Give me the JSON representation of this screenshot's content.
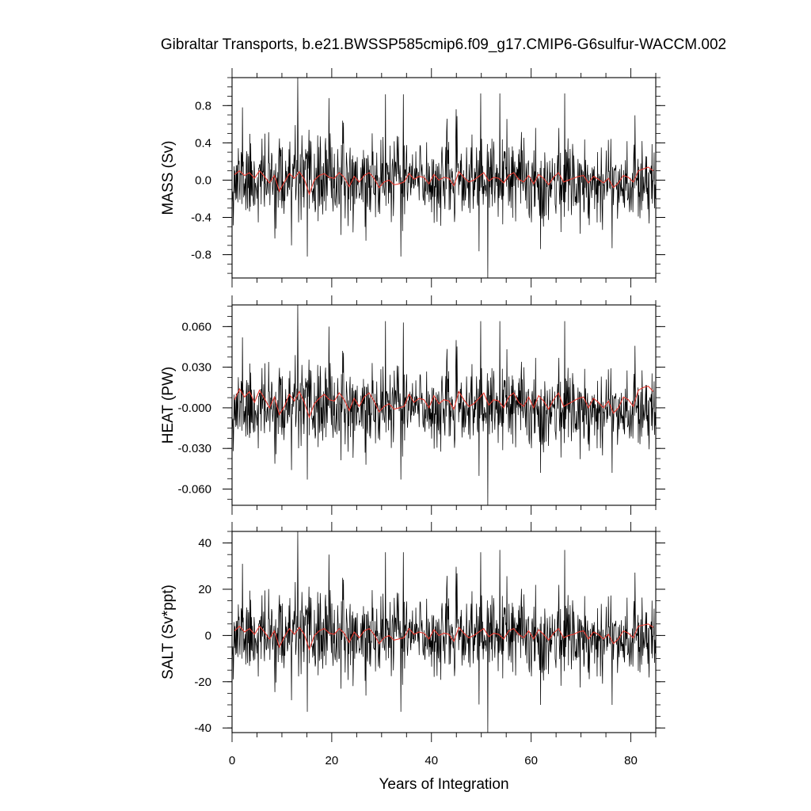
{
  "chart_data": {
    "type": "line",
    "title": "Gibraltar Transports, b.e21.BWSSP585cmip6.f09_g17.CMIP6-G6sulfur-WACCM.002",
    "xlabel": "Years of Integration",
    "xlim": [
      0,
      85
    ],
    "x_ticks": [
      "0",
      "20",
      "40",
      "60",
      "80"
    ],
    "grid": false,
    "panels": [
      {
        "ylabel": "MASS (Sv)",
        "ylim": [
          -1.05,
          1.1
        ],
        "y_ticks": [
          "0.8",
          "0.4",
          "0.0",
          "-0.4",
          "-0.8"
        ],
        "series": [
          {
            "role": "monthly",
            "color": "#000000",
            "std": 0.22,
            "seed": 11,
            "spikes": [
              [
                13.2,
                1.1
              ],
              [
                51.3,
                -1.05
              ],
              [
                2.1,
                0.78
              ],
              [
                19.4,
                0.88
              ],
              [
                30.8,
                0.92
              ],
              [
                34.4,
                0.92
              ],
              [
                49.9,
                0.93
              ],
              [
                53.7,
                0.93
              ],
              [
                66.7,
                0.93
              ],
              [
                15.1,
                -0.82
              ],
              [
                33.9,
                -0.82
              ],
              [
                26.9,
                -0.65
              ],
              [
                61.9,
                -0.74
              ],
              [
                76.2,
                -0.73
              ],
              [
                11.9,
                -0.7
              ]
            ]
          },
          {
            "role": "annual-mean",
            "color": "#e8392f",
            "x": [
              0.5,
              1.5,
              2.5,
              3.5,
              4.5,
              5.5,
              6.5,
              7.5,
              8.5,
              9.5,
              10.5,
              11.5,
              12.5,
              13.5,
              14.5,
              15.5,
              16.5,
              17.5,
              18.5,
              19.5,
              20.5,
              21.5,
              22.5,
              23.5,
              24.5,
              25.5,
              26.5,
              27.5,
              28.5,
              29.5,
              30.5,
              31.5,
              32.5,
              33.5,
              34.5,
              35.5,
              36.5,
              37.5,
              38.5,
              39.5,
              40.5,
              41.5,
              42.5,
              43.5,
              44.5,
              45.5,
              46.5,
              47.5,
              48.5,
              49.5,
              50.5,
              51.5,
              52.5,
              53.5,
              54.5,
              55.5,
              56.5,
              57.5,
              58.5,
              59.5,
              60.5,
              61.5,
              62.5,
              63.5,
              64.5,
              65.5,
              66.5,
              67.5,
              68.5,
              69.5,
              70.5,
              71.5,
              72.5,
              73.5,
              74.5,
              75.5,
              76.5,
              77.5,
              78.5,
              79.5,
              80.5,
              81.5,
              82.5,
              83.5,
              84.5
            ],
            "y": [
              0.06,
              0.1,
              0.05,
              0.08,
              0.02,
              0.1,
              0.04,
              -0.03,
              0.05,
              -0.12,
              -0.02,
              0.07,
              0.02,
              0.09,
              0.01,
              -0.15,
              0.0,
              0.05,
              0.07,
              0.03,
              0.02,
              0.08,
              0.03,
              -0.07,
              0.04,
              -0.02,
              0.05,
              0.08,
              0.02,
              -0.08,
              -0.02,
              0.0,
              -0.05,
              -0.04,
              -0.02,
              0.07,
              0.01,
              0.04,
              0.03,
              -0.04,
              0.06,
              0.0,
              0.03,
              0.02,
              -0.06,
              0.09,
              0.03,
              -0.02,
              0.0,
              0.04,
              0.08,
              -0.01,
              0.03,
              0.02,
              -0.03,
              0.05,
              0.08,
              0.01,
              -0.02,
              0.05,
              -0.04,
              0.06,
              0.02,
              -0.05,
              0.03,
              0.08,
              -0.02,
              0.0,
              0.02,
              0.04,
              0.05,
              -0.03,
              0.04,
              0.01,
              -0.03,
              0.02,
              -0.08,
              -0.03,
              0.05,
              0.03,
              -0.02,
              0.1,
              0.12,
              0.14,
              0.1
            ]
          }
        ]
      },
      {
        "ylabel": "HEAT (PW)",
        "ylim": [
          -0.072,
          0.076
        ],
        "y_ticks": [
          "0.060",
          "0.030",
          "-0.000",
          "-0.030",
          "-0.060"
        ],
        "series": [
          {
            "role": "monthly",
            "color": "#000000",
            "std": 0.0145,
            "seed": 11,
            "spikes": [
              [
                13.2,
                0.076
              ],
              [
                51.3,
                -0.072
              ],
              [
                2.1,
                0.052
              ],
              [
                19.4,
                0.06
              ],
              [
                30.8,
                0.064
              ],
              [
                34.4,
                0.063
              ],
              [
                49.9,
                0.064
              ],
              [
                53.7,
                0.064
              ],
              [
                66.7,
                0.064
              ],
              [
                15.1,
                -0.053
              ],
              [
                33.9,
                -0.053
              ],
              [
                26.9,
                -0.042
              ],
              [
                61.9,
                -0.048
              ],
              [
                76.2,
                -0.048
              ],
              [
                11.9,
                -0.046
              ]
            ]
          },
          {
            "role": "annual-mean",
            "color": "#e8392f",
            "x": [
              0.5,
              1.5,
              2.5,
              3.5,
              4.5,
              5.5,
              6.5,
              7.5,
              8.5,
              9.5,
              10.5,
              11.5,
              12.5,
              13.5,
              14.5,
              15.5,
              16.5,
              17.5,
              18.5,
              19.5,
              20.5,
              21.5,
              22.5,
              23.5,
              24.5,
              25.5,
              26.5,
              27.5,
              28.5,
              29.5,
              30.5,
              31.5,
              32.5,
              33.5,
              34.5,
              35.5,
              36.5,
              37.5,
              38.5,
              39.5,
              40.5,
              41.5,
              42.5,
              43.5,
              44.5,
              45.5,
              46.5,
              47.5,
              48.5,
              49.5,
              50.5,
              51.5,
              52.5,
              53.5,
              54.5,
              55.5,
              56.5,
              57.5,
              58.5,
              59.5,
              60.5,
              61.5,
              62.5,
              63.5,
              64.5,
              65.5,
              66.5,
              67.5,
              68.5,
              69.5,
              70.5,
              71.5,
              72.5,
              73.5,
              74.5,
              75.5,
              76.5,
              77.5,
              78.5,
              79.5,
              80.5,
              81.5,
              82.5,
              83.5,
              84.5
            ],
            "y": [
              0.006,
              0.014,
              0.008,
              0.012,
              0.004,
              0.013,
              0.007,
              0.0,
              0.008,
              -0.005,
              0.001,
              0.01,
              0.005,
              0.012,
              0.004,
              -0.007,
              0.003,
              0.007,
              0.01,
              0.006,
              0.005,
              0.011,
              0.006,
              -0.002,
              0.007,
              0.001,
              0.008,
              0.011,
              0.005,
              -0.003,
              0.001,
              0.003,
              -0.001,
              0.0,
              0.001,
              0.01,
              0.004,
              0.007,
              0.006,
              0.0,
              0.009,
              0.003,
              0.006,
              0.005,
              -0.001,
              0.012,
              0.006,
              0.001,
              0.003,
              0.007,
              0.011,
              0.002,
              0.006,
              0.005,
              0.0,
              0.008,
              0.011,
              0.004,
              0.001,
              0.008,
              0.0,
              0.009,
              0.005,
              -0.001,
              0.006,
              0.011,
              0.001,
              0.003,
              0.005,
              0.007,
              0.008,
              0.0,
              0.007,
              0.004,
              0.0,
              0.005,
              -0.004,
              0.0,
              0.008,
              0.006,
              0.001,
              0.013,
              0.015,
              0.016,
              0.012
            ]
          }
        ]
      },
      {
        "ylabel": "SALT (Sv*ppt)",
        "ylim": [
          -42,
          45
        ],
        "y_ticks": [
          "40",
          "20",
          "0",
          "-20",
          "-40"
        ],
        "series": [
          {
            "role": "monthly",
            "color": "#000000",
            "std": 8.6,
            "seed": 11,
            "spikes": [
              [
                13.2,
                45
              ],
              [
                51.3,
                -42
              ],
              [
                2.1,
                31
              ],
              [
                19.4,
                35
              ],
              [
                30.8,
                36
              ],
              [
                34.4,
                36
              ],
              [
                49.9,
                36
              ],
              [
                53.7,
                37
              ],
              [
                66.7,
                37
              ],
              [
                15.1,
                -33
              ],
              [
                33.9,
                -33
              ],
              [
                26.9,
                -26
              ],
              [
                61.9,
                -30
              ],
              [
                76.2,
                -30
              ],
              [
                11.9,
                -28
              ]
            ]
          },
          {
            "role": "annual-mean",
            "color": "#e8392f",
            "x": [
              0.5,
              1.5,
              2.5,
              3.5,
              4.5,
              5.5,
              6.5,
              7.5,
              8.5,
              9.5,
              10.5,
              11.5,
              12.5,
              13.5,
              14.5,
              15.5,
              16.5,
              17.5,
              18.5,
              19.5,
              20.5,
              21.5,
              22.5,
              23.5,
              24.5,
              25.5,
              26.5,
              27.5,
              28.5,
              29.5,
              30.5,
              31.5,
              32.5,
              33.5,
              34.5,
              35.5,
              36.5,
              37.5,
              38.5,
              39.5,
              40.5,
              41.5,
              42.5,
              43.5,
              44.5,
              45.5,
              46.5,
              47.5,
              48.5,
              49.5,
              50.5,
              51.5,
              52.5,
              53.5,
              54.5,
              55.5,
              56.5,
              57.5,
              58.5,
              59.5,
              60.5,
              61.5,
              62.5,
              63.5,
              64.5,
              65.5,
              66.5,
              67.5,
              68.5,
              69.5,
              70.5,
              71.5,
              72.5,
              73.5,
              74.5,
              75.5,
              76.5,
              77.5,
              78.5,
              79.5,
              80.5,
              81.5,
              82.5,
              83.5,
              84.5
            ],
            "y": [
              2.0,
              4.0,
              1.5,
              3.0,
              0.5,
              4.0,
              1.5,
              -1.5,
              2.0,
              -5.0,
              -0.5,
              3.0,
              0.5,
              3.5,
              0.5,
              -6.0,
              0.0,
              2.0,
              3.0,
              1.0,
              0.5,
              3.0,
              1.0,
              -3.0,
              1.5,
              -1.0,
              2.0,
              3.0,
              0.5,
              -3.5,
              -1.0,
              0.0,
              -2.0,
              -1.5,
              -1.0,
              3.0,
              0.5,
              1.5,
              1.0,
              -1.5,
              2.5,
              0.0,
              1.0,
              0.5,
              -2.5,
              3.5,
              1.0,
              -1.0,
              0.0,
              1.5,
              3.0,
              -0.5,
              1.0,
              0.5,
              -1.5,
              2.0,
              3.0,
              0.5,
              -1.0,
              2.0,
              -1.5,
              2.5,
              0.5,
              -2.0,
              1.0,
              3.0,
              -1.0,
              0.0,
              0.5,
              1.5,
              2.0,
              -1.5,
              1.5,
              0.5,
              -1.5,
              0.5,
              -3.5,
              -1.5,
              2.0,
              1.0,
              -1.0,
              4.0,
              4.5,
              5.0,
              3.5
            ]
          }
        ]
      }
    ]
  }
}
